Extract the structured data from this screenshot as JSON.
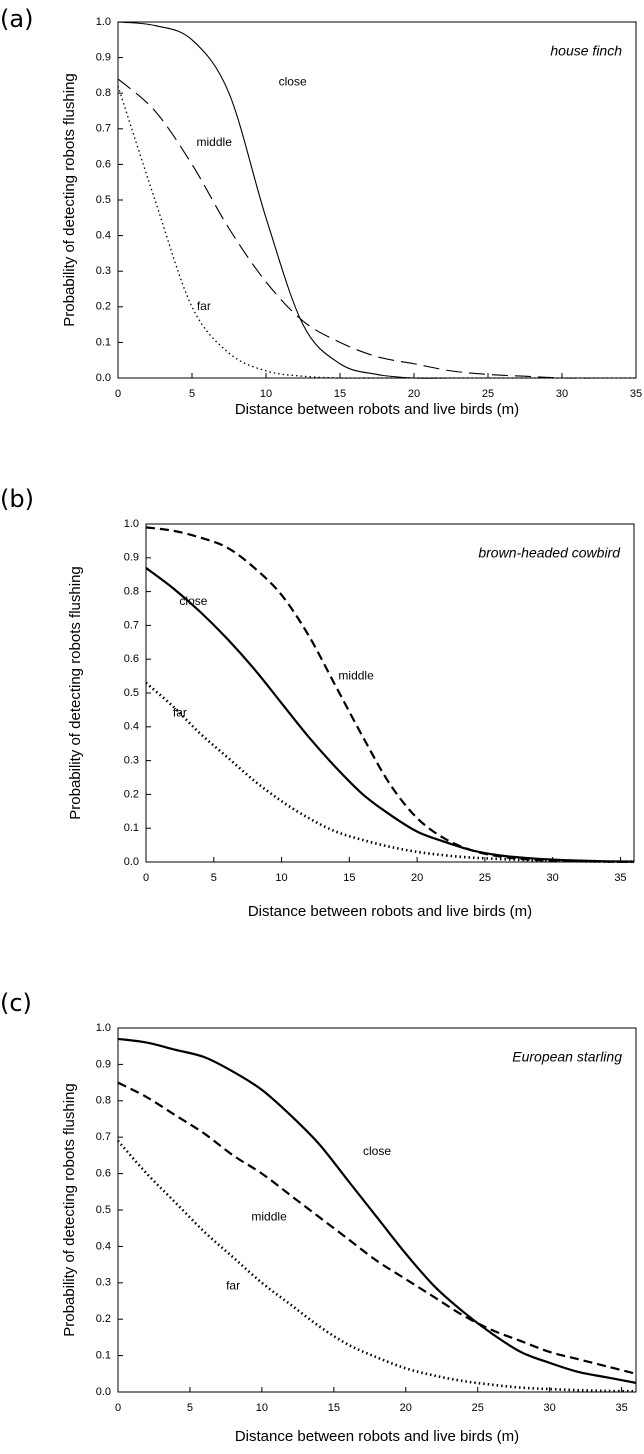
{
  "chart_data": [
    {
      "type": "line",
      "panel_label": "(a)",
      "annotation": "house finch",
      "x_label": "Distance between robots and live birds (m)",
      "y_label": "Probability of detecting robots flushing",
      "xlim": [
        0,
        35
      ],
      "ylim": [
        0,
        1
      ],
      "xticks": [
        0,
        5,
        10,
        15,
        20,
        25,
        30,
        35
      ],
      "yticks": [
        {
          "value": 0,
          "label": "0.0"
        },
        0.1,
        0.2,
        0.3,
        0.4,
        0.5,
        0.6,
        0.7,
        0.8,
        0.9,
        {
          "value": 1,
          "label": "1.0"
        }
      ],
      "x": [
        0,
        2.5,
        5,
        7.5,
        10,
        12.5,
        15,
        17.5,
        20,
        22.5,
        25,
        27.5,
        30,
        32.5,
        35
      ],
      "series": [
        {
          "name": "close",
          "color": "#000000",
          "line_style": "solid",
          "values": [
            1.0,
            0.99,
            0.95,
            0.8,
            0.45,
            0.15,
            0.04,
            0.01,
            0,
            0,
            0,
            0,
            0,
            0,
            0
          ]
        },
        {
          "name": "middle",
          "color": "#000000",
          "line_style": "long-dash",
          "values": [
            0.84,
            0.75,
            0.6,
            0.42,
            0.27,
            0.16,
            0.1,
            0.06,
            0.04,
            0.02,
            0.01,
            0.005,
            0,
            0,
            0
          ]
        },
        {
          "name": "far",
          "color": "#000000",
          "line_style": "dotted",
          "values": [
            0.82,
            0.5,
            0.2,
            0.07,
            0.02,
            0.005,
            0,
            0,
            0,
            0,
            0,
            0,
            0,
            0,
            0
          ]
        }
      ]
    },
    {
      "type": "line",
      "panel_label": "(b)",
      "annotation": "brown-headed cowbird",
      "x_label": "Distance between robots and live birds (m)",
      "y_label": "Probability of detecting robots flushing",
      "xlim": [
        0,
        36
      ],
      "ylim": [
        0,
        1
      ],
      "xticks": [
        0,
        5,
        10,
        15,
        20,
        25,
        30,
        35
      ],
      "yticks": [
        {
          "value": 0,
          "label": "0.0"
        },
        0.1,
        0.2,
        0.3,
        0.4,
        0.5,
        0.6,
        0.7,
        0.8,
        0.9,
        {
          "value": 1,
          "label": "1.0"
        }
      ],
      "x": [
        0,
        2,
        4,
        6,
        8,
        10,
        12,
        14,
        16,
        18,
        20,
        22,
        24,
        26,
        28,
        30,
        32,
        34,
        36
      ],
      "series": [
        {
          "name": "close",
          "color": "#000000",
          "line_style": "solid",
          "values": [
            0.87,
            0.81,
            0.74,
            0.66,
            0.57,
            0.47,
            0.37,
            0.28,
            0.2,
            0.14,
            0.09,
            0.06,
            0.035,
            0.02,
            0.012,
            0.007,
            0.004,
            0.002,
            0.001
          ]
        },
        {
          "name": "middle",
          "color": "#000000",
          "line_style": "dashed",
          "values": [
            0.99,
            0.98,
            0.96,
            0.93,
            0.87,
            0.79,
            0.67,
            0.52,
            0.37,
            0.23,
            0.13,
            0.07,
            0.035,
            0.017,
            0.008,
            0.004,
            0.002,
            0.001,
            0
          ]
        },
        {
          "name": "far",
          "color": "#000000",
          "line_style": "dotted",
          "values": [
            0.53,
            0.46,
            0.38,
            0.31,
            0.24,
            0.18,
            0.13,
            0.09,
            0.065,
            0.045,
            0.03,
            0.02,
            0.013,
            0.009,
            0.006,
            0.004,
            0.002,
            0.001,
            0.001
          ]
        }
      ]
    },
    {
      "type": "line",
      "panel_label": "(c)",
      "annotation": "European starling",
      "x_label": "Distance between robots and live birds (m)",
      "y_label": "Probability of detecting robots flushing",
      "xlim": [
        0,
        36
      ],
      "ylim": [
        0,
        1
      ],
      "xticks": [
        0,
        5,
        10,
        15,
        20,
        25,
        30,
        35
      ],
      "yticks": [
        {
          "value": 0,
          "label": "0.0"
        },
        0.1,
        0.2,
        0.3,
        0.4,
        0.5,
        0.6,
        0.7,
        0.8,
        0.9,
        {
          "value": 1,
          "label": "1.0"
        }
      ],
      "x": [
        0,
        2,
        4,
        6,
        8,
        10,
        12,
        14,
        16,
        18,
        20,
        22,
        24,
        26,
        28,
        30,
        32,
        34,
        36
      ],
      "series": [
        {
          "name": "close",
          "color": "#000000",
          "line_style": "solid",
          "values": [
            0.97,
            0.96,
            0.94,
            0.92,
            0.88,
            0.83,
            0.76,
            0.68,
            0.58,
            0.48,
            0.38,
            0.29,
            0.22,
            0.16,
            0.11,
            0.08,
            0.055,
            0.04,
            0.025
          ]
        },
        {
          "name": "middle",
          "color": "#000000",
          "line_style": "dashed",
          "values": [
            0.85,
            0.81,
            0.76,
            0.71,
            0.65,
            0.6,
            0.54,
            0.48,
            0.42,
            0.36,
            0.31,
            0.26,
            0.21,
            0.17,
            0.14,
            0.11,
            0.09,
            0.07,
            0.05
          ]
        },
        {
          "name": "far",
          "color": "#000000",
          "line_style": "dotted",
          "values": [
            0.69,
            0.6,
            0.52,
            0.44,
            0.37,
            0.3,
            0.24,
            0.18,
            0.13,
            0.095,
            0.065,
            0.045,
            0.03,
            0.02,
            0.012,
            0.008,
            0.005,
            0.003,
            0.002
          ]
        }
      ]
    }
  ]
}
